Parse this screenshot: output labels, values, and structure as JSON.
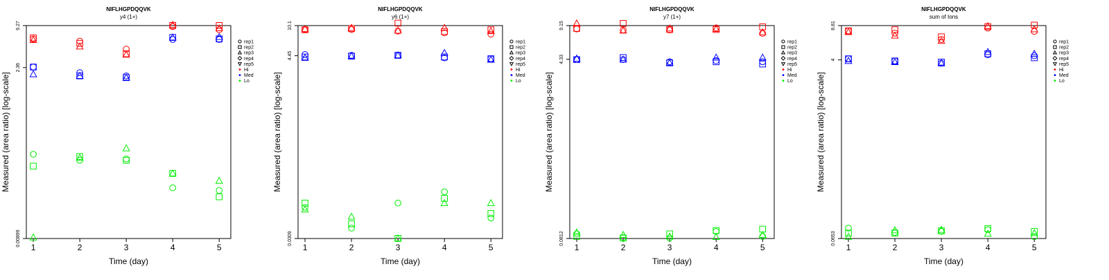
{
  "figure": {
    "xlabel": "Time (day)",
    "ylabel": "Measured (area ratio) [log-scale]",
    "legend": [
      {
        "label": "rep1",
        "marker": "circle"
      },
      {
        "label": "rep2",
        "marker": "square"
      },
      {
        "label": "rep3",
        "marker": "triangle-up"
      },
      {
        "label": "rep4",
        "marker": "diamond"
      },
      {
        "label": "rep5",
        "marker": "triangle-down"
      },
      {
        "label": "Hi",
        "color": "#ff0000"
      },
      {
        "label": "Med",
        "color": "#0000ff"
      },
      {
        "label": "Lo",
        "color": "#00ee00"
      }
    ]
  },
  "colors": {
    "Hi": "#ff0000",
    "Med": "#0000ff",
    "Lo": "#00ee00",
    "axis": "#000000"
  },
  "chart_data": [
    {
      "type": "scatter",
      "title": "NIFLHGPDQQVK",
      "subtitle": "y4 (1+)",
      "x": [
        1,
        2,
        3,
        4,
        5
      ],
      "y_scale": "log",
      "ylim": [
        0.00899,
        9.27
      ],
      "yticks": [
        "0.00899",
        "2.36",
        "9.27"
      ],
      "series": [
        {
          "group": "Hi",
          "rep": "rep1",
          "values": [
            6.0,
            5.6,
            4.3,
            9.0,
            8.1
          ]
        },
        {
          "group": "Hi",
          "rep": "rep2",
          "values": [
            6.2,
            5.2,
            3.7,
            9.3,
            9.3
          ]
        },
        {
          "group": "Hi",
          "rep": "rep3",
          "values": [
            5.8,
            4.7,
            3.6,
            9.5,
            8.5
          ]
        },
        {
          "group": "Med",
          "rep": "rep1",
          "values": [
            2.4,
            2.0,
            1.8,
            5.9,
            5.9
          ]
        },
        {
          "group": "Med",
          "rep": "rep2",
          "values": [
            2.4,
            1.8,
            1.7,
            6.3,
            6.0
          ]
        },
        {
          "group": "Med",
          "rep": "rep3",
          "values": [
            1.9,
            1.8,
            1.7,
            6.3,
            6.4
          ]
        },
        {
          "group": "Lo",
          "rep": "rep1",
          "values": [
            0.14,
            0.115,
            0.12,
            0.047,
            0.043
          ]
        },
        {
          "group": "Lo",
          "rep": "rep2",
          "values": [
            0.095,
            0.13,
            0.115,
            0.075,
            0.035
          ]
        },
        {
          "group": "Lo",
          "rep": "rep3",
          "values": [
            0.0093,
            0.125,
            0.17,
            0.075,
            0.059
          ]
        }
      ]
    },
    {
      "type": "scatter",
      "title": "NIFLHGPDQQVK",
      "subtitle": "y6 (1+)",
      "x": [
        1,
        2,
        3,
        4,
        5
      ],
      "y_scale": "log",
      "ylim": [
        0.0309,
        10.1
      ],
      "yticks": [
        "0.0309",
        "4.45",
        "10.1"
      ],
      "series": [
        {
          "group": "Hi",
          "rep": "rep1",
          "values": [
            9.1,
            9.1,
            8.7,
            8.3,
            8.0
          ]
        },
        {
          "group": "Hi",
          "rep": "rep2",
          "values": [
            9.0,
            9.3,
            10.8,
            8.6,
            9.0
          ]
        },
        {
          "group": "Hi",
          "rep": "rep3",
          "values": [
            9.2,
            9.5,
            8.8,
            9.5,
            8.7
          ]
        },
        {
          "group": "Med",
          "rep": "rep1",
          "values": [
            4.6,
            4.5,
            4.5,
            4.2,
            4.1
          ]
        },
        {
          "group": "Med",
          "rep": "rep2",
          "values": [
            4.3,
            4.4,
            4.5,
            4.3,
            4.1
          ]
        },
        {
          "group": "Med",
          "rep": "rep3",
          "values": [
            4.2,
            4.4,
            4.5,
            4.8,
            4.0
          ]
        },
        {
          "group": "Lo",
          "rep": "rep1",
          "values": [
            0.072,
            0.041,
            0.081,
            0.11,
            0.054
          ]
        },
        {
          "group": "Lo",
          "rep": "rep2",
          "values": [
            0.081,
            0.046,
            0.031,
            0.092,
            0.061
          ]
        },
        {
          "group": "Lo",
          "rep": "rep3",
          "values": [
            0.068,
            0.056,
            0.031,
            0.081,
            0.081
          ]
        }
      ]
    },
    {
      "type": "scatter",
      "title": "NIFLHGPDQQVK",
      "subtitle": "y7 (1+)",
      "x": [
        1,
        2,
        3,
        4,
        5
      ],
      "y_scale": "log",
      "ylim": [
        0.0812,
        9.15
      ],
      "yticks": [
        "0.0812",
        "4.33",
        "9.15"
      ],
      "series": [
        {
          "group": "Hi",
          "rep": "rep1",
          "values": [
            8.5,
            8.3,
            8.3,
            8.7,
            7.7
          ]
        },
        {
          "group": "Hi",
          "rep": "rep2",
          "values": [
            8.6,
            9.6,
            8.4,
            8.4,
            8.9
          ]
        },
        {
          "group": "Hi",
          "rep": "rep3",
          "values": [
            9.6,
            8.2,
            8.6,
            8.5,
            7.9
          ]
        },
        {
          "group": "Med",
          "rep": "rep1",
          "values": [
            4.3,
            4.3,
            4.1,
            4.2,
            4.1
          ]
        },
        {
          "group": "Med",
          "rep": "rep2",
          "values": [
            4.3,
            4.5,
            4.0,
            4.1,
            3.9
          ]
        },
        {
          "group": "Med",
          "rep": "rep3",
          "values": [
            4.4,
            4.3,
            4.0,
            4.5,
            4.5
          ]
        },
        {
          "group": "Lo",
          "rep": "rep1",
          "values": [
            0.09,
            0.083,
            0.082,
            0.095,
            0.085
          ]
        },
        {
          "group": "Lo",
          "rep": "rep2",
          "values": [
            0.085,
            0.082,
            0.09,
            0.097,
            0.1
          ]
        },
        {
          "group": "Lo",
          "rep": "rep3",
          "values": [
            0.093,
            0.088,
            0.085,
            0.084,
            0.088
          ]
        }
      ]
    },
    {
      "type": "scatter",
      "title": "NIFLHGPDQQVK",
      "subtitle": "sum of Ions",
      "x": [
        1,
        2,
        3,
        4,
        5
      ],
      "y_scale": "log",
      "ylim": [
        0.0653,
        8.81
      ],
      "yticks": [
        "0.0653",
        "4",
        "8.81"
      ],
      "series": [
        {
          "group": "Hi",
          "rep": "rep1",
          "values": [
            7.8,
            7.4,
            6.4,
            8.3,
            7.7
          ]
        },
        {
          "group": "Hi",
          "rep": "rep2",
          "values": [
            7.8,
            8.0,
            6.8,
            8.6,
            8.9
          ]
        },
        {
          "group": "Hi",
          "rep": "rep3",
          "values": [
            7.6,
            7.0,
            6.2,
            8.7,
            8.1
          ]
        },
        {
          "group": "Med",
          "rep": "rep1",
          "values": [
            4.1,
            3.9,
            3.7,
            4.5,
            4.4
          ]
        },
        {
          "group": "Med",
          "rep": "rep2",
          "values": [
            4.1,
            3.9,
            3.8,
            4.6,
            4.2
          ]
        },
        {
          "group": "Med",
          "rep": "rep3",
          "values": [
            3.9,
            3.8,
            3.7,
            4.8,
            4.6
          ]
        },
        {
          "group": "Lo",
          "rep": "rep1",
          "values": [
            0.083,
            0.075,
            0.077,
            0.08,
            0.068
          ]
        },
        {
          "group": "Lo",
          "rep": "rep2",
          "values": [
            0.074,
            0.074,
            0.078,
            0.082,
            0.077
          ]
        },
        {
          "group": "Lo",
          "rep": "rep3",
          "values": [
            0.068,
            0.079,
            0.08,
            0.073,
            0.074
          ]
        }
      ]
    }
  ]
}
